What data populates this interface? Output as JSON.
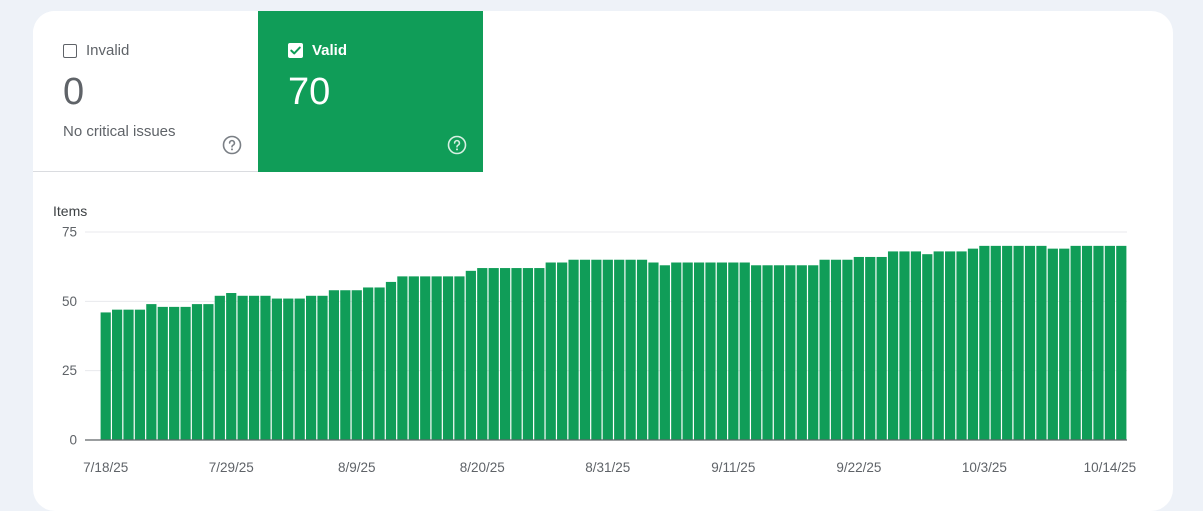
{
  "tiles": {
    "invalid": {
      "label": "Invalid",
      "count": "0",
      "subtitle": "No critical issues",
      "checked": false
    },
    "valid": {
      "label": "Valid",
      "count": "70",
      "checked": true
    }
  },
  "colors": {
    "valid_green": "#109d58",
    "axis_text": "#5f6368",
    "grid": "#e8eaed"
  },
  "chart_data": {
    "type": "bar",
    "ylabel": "Items",
    "ylim": [
      0,
      75
    ],
    "yticks": [
      0,
      25,
      50,
      75
    ],
    "xtick_labels": [
      "7/18/25",
      "7/29/25",
      "8/9/25",
      "8/20/25",
      "8/31/25",
      "9/11/25",
      "9/22/25",
      "10/3/25",
      "10/14/25"
    ],
    "series": [
      {
        "values": [
          46,
          47,
          47,
          47,
          49,
          48,
          48,
          48,
          49,
          49,
          52,
          53,
          52,
          52,
          52,
          51,
          51,
          51,
          52,
          52,
          54,
          54,
          54,
          55,
          55,
          57,
          59,
          59,
          59,
          59,
          59,
          59,
          61,
          62,
          62,
          62,
          62,
          62,
          62,
          64,
          64,
          65,
          65,
          65,
          65,
          65,
          65,
          65,
          64,
          63,
          64,
          64,
          64,
          64,
          64,
          64,
          64,
          63,
          63,
          63,
          63,
          63,
          63,
          65,
          65,
          65,
          66,
          66,
          66,
          68,
          68,
          68,
          67,
          68,
          68,
          68,
          69,
          70,
          70,
          70,
          70,
          70,
          70,
          69,
          69,
          70,
          70,
          70,
          70,
          70
        ]
      }
    ]
  }
}
